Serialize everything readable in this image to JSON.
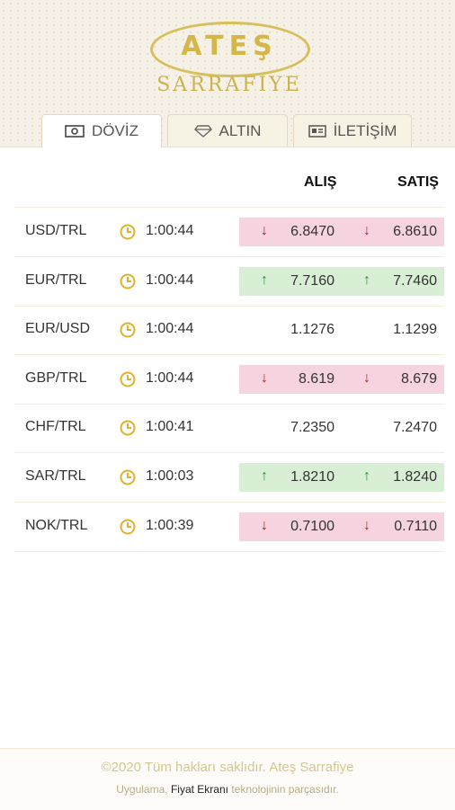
{
  "brand": {
    "title": "ATEŞ",
    "subtitle": "SARRAFIYE"
  },
  "tabs": [
    {
      "label": "DÖVİZ",
      "icon": "banknote-icon",
      "active": true
    },
    {
      "label": "ALTIN",
      "icon": "diamond-icon",
      "active": false
    },
    {
      "label": "İLETİŞİM",
      "icon": "contact-card-icon",
      "active": false
    }
  ],
  "table": {
    "headers": {
      "buy": "ALIŞ",
      "sell": "SATIŞ"
    },
    "rows": [
      {
        "pair": "USD/TRL",
        "time": "1:00:44",
        "buy": "6.8470",
        "sell": "6.8610",
        "trend": "down"
      },
      {
        "pair": "EUR/TRL",
        "time": "1:00:44",
        "buy": "7.7160",
        "sell": "7.7460",
        "trend": "up"
      },
      {
        "pair": "EUR/USD",
        "time": "1:00:44",
        "buy": "1.1276",
        "sell": "1.1299",
        "trend": "none"
      },
      {
        "pair": "GBP/TRL",
        "time": "1:00:44",
        "buy": "8.619",
        "sell": "8.679",
        "trend": "down"
      },
      {
        "pair": "CHF/TRL",
        "time": "1:00:41",
        "buy": "7.2350",
        "sell": "7.2470",
        "trend": "none"
      },
      {
        "pair": "SAR/TRL",
        "time": "1:00:03",
        "buy": "1.8210",
        "sell": "1.8240",
        "trend": "up"
      },
      {
        "pair": "NOK/TRL",
        "time": "1:00:39",
        "buy": "0.7100",
        "sell": "0.7110",
        "trend": "down"
      }
    ]
  },
  "footer": {
    "copyright": "©2020 Tüm hakları saklıdır. Ateş Sarrafiye",
    "note_prefix": "Uygulama,",
    "note_link": "Fiyat Ekranı",
    "note_suffix": "teknolojinin parçasıdır."
  },
  "colors": {
    "gold": "#d4b748",
    "down_bg": "#f6d4df",
    "up_bg": "#d8efd5",
    "down_arrow": "#d0142c",
    "up_arrow": "#1f9a2a"
  }
}
